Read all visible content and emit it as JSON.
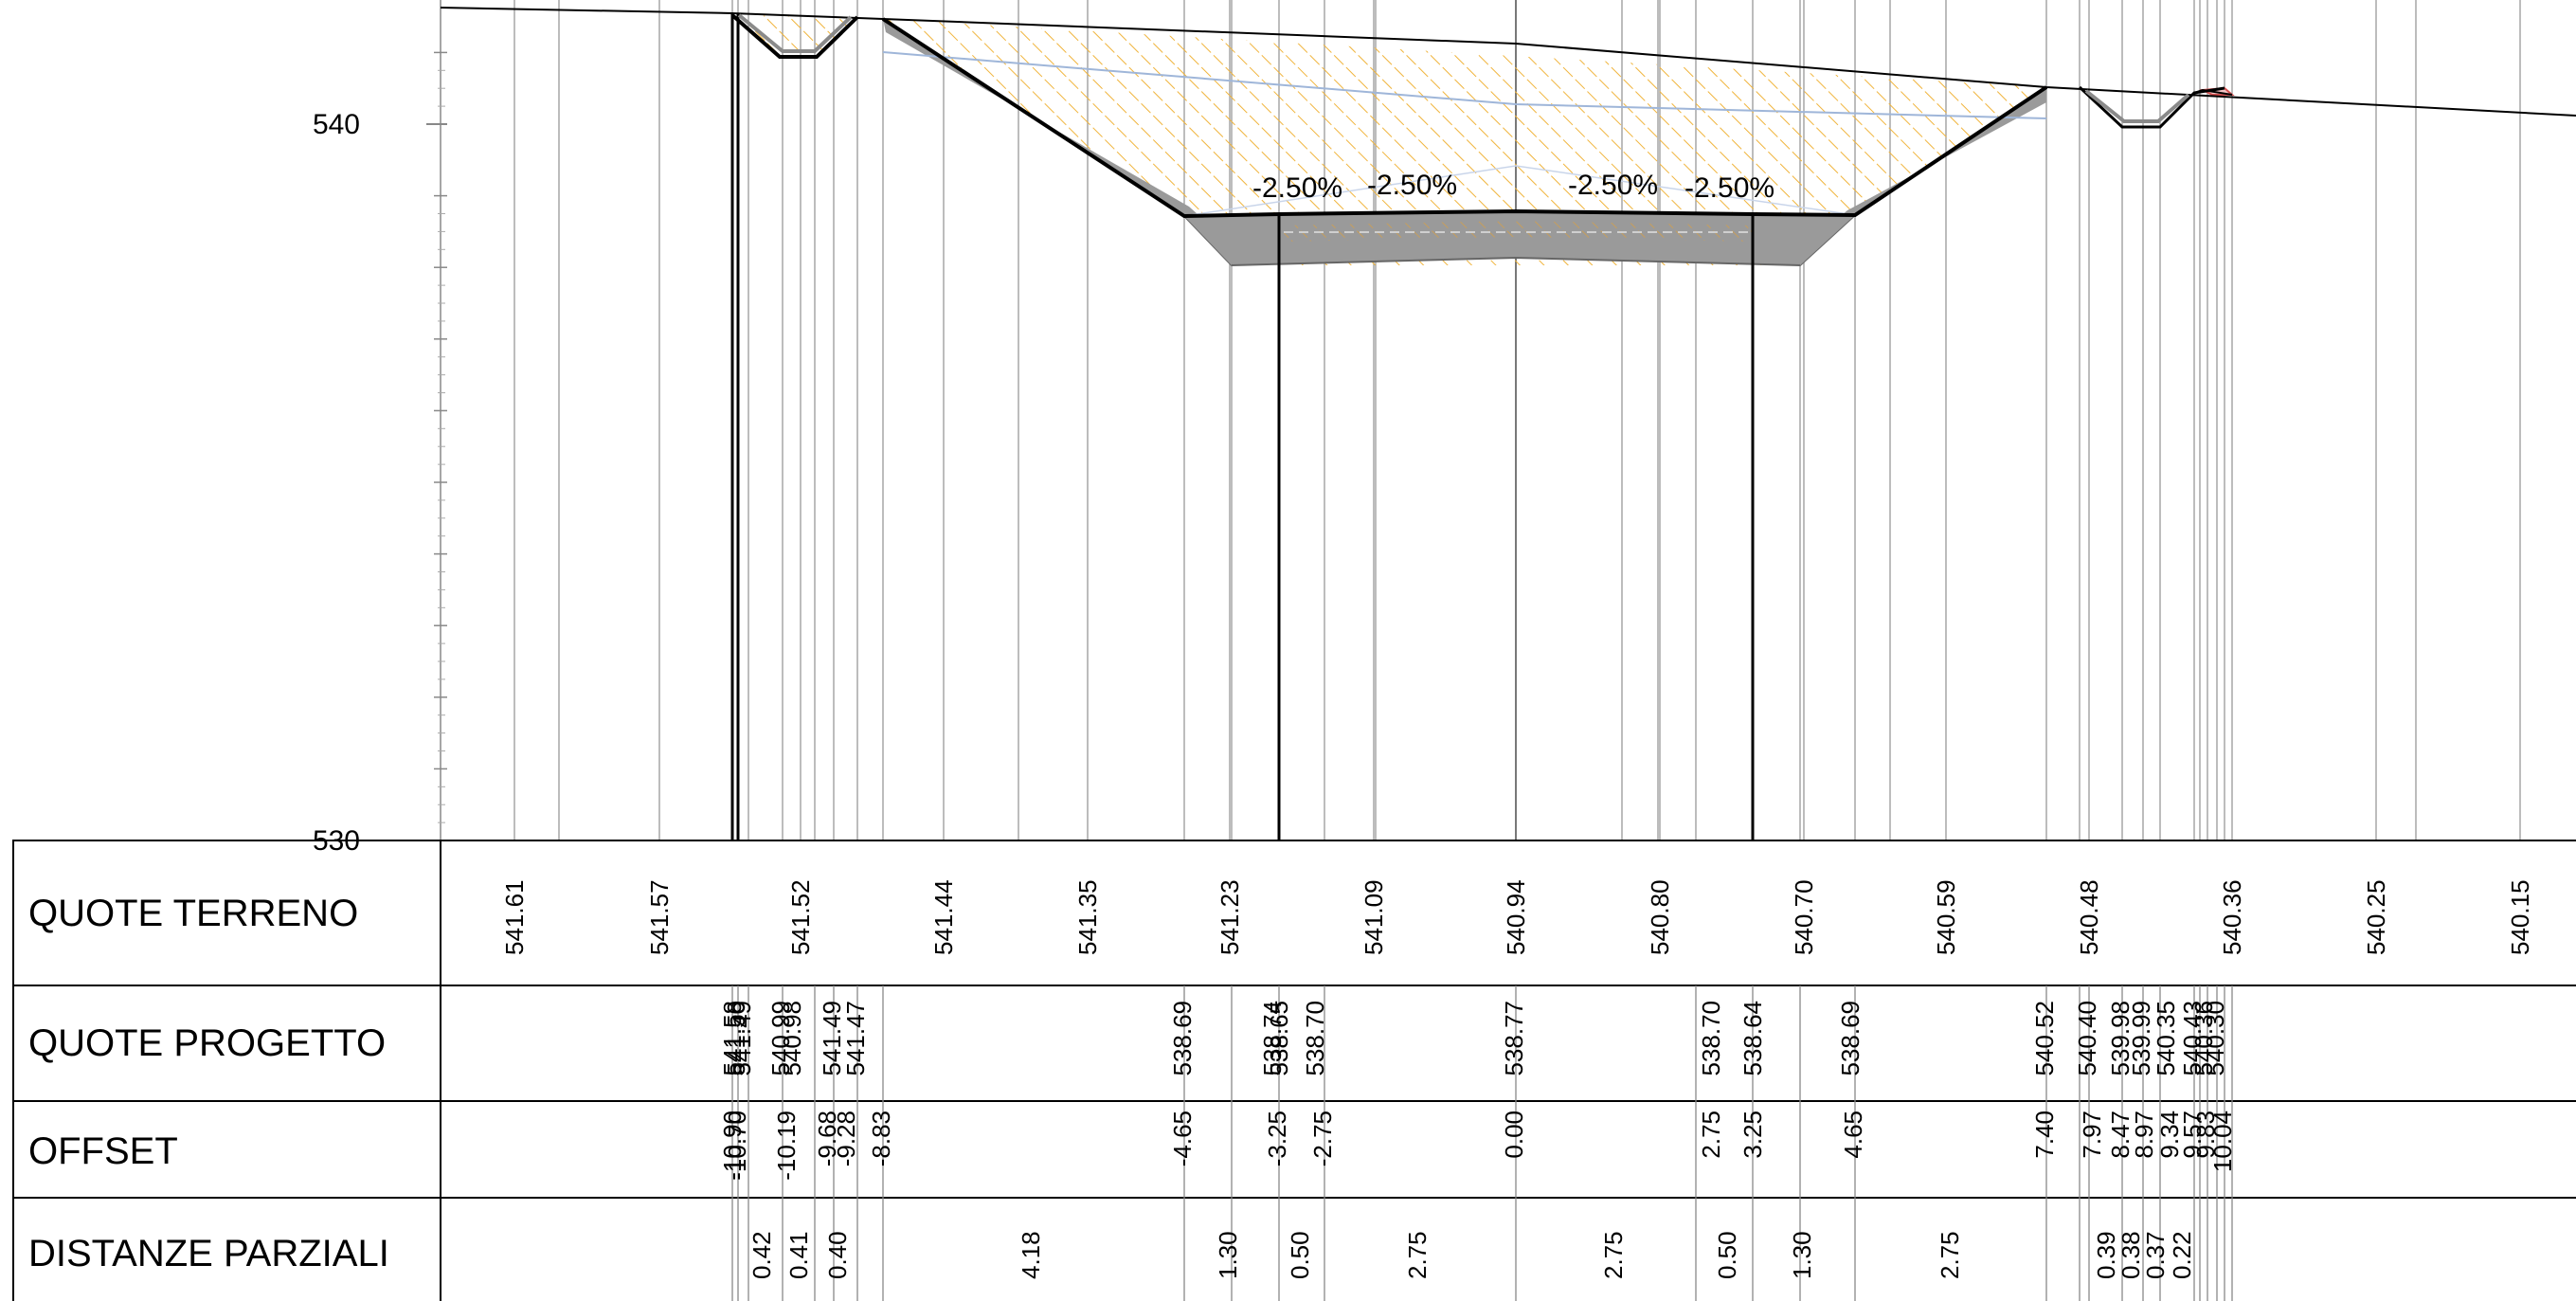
{
  "elevation_labels": [
    {
      "text": "540",
      "value": 540
    },
    {
      "text": "530",
      "value": 530
    }
  ],
  "rows": [
    {
      "key": "terreno",
      "label": "QUOTE TERRENO"
    },
    {
      "key": "progetto",
      "label": "QUOTE PROGETTO"
    },
    {
      "key": "offset",
      "label": "OFFSET"
    },
    {
      "key": "distanze",
      "label": "DISTANZE PARZIALI"
    }
  ],
  "slope_labels": [
    "-2.50%",
    "-2.50%",
    "-2.50%",
    "-2.50%"
  ],
  "terreno_values": [
    "541.61",
    "541.57",
    "541.52",
    "541.44",
    "541.35",
    "541.23",
    "541.09",
    "540.94",
    "540.80",
    "540.70",
    "540.59",
    "540.48",
    "540.36",
    "540.25",
    "540.15"
  ],
  "progetto_values": [
    "541.58",
    "541.50",
    "541.49",
    "540.99",
    "540.98",
    "541.49",
    "541.47",
    "538.69",
    "538.74",
    "538.65",
    "538.70",
    "538.77",
    "538.70",
    "538.64",
    "538.69",
    "540.52",
    "540.40",
    "539.98",
    "539.99",
    "540.35",
    "540.43",
    "540.36",
    "540.30"
  ],
  "offset_values": [
    "-10.90",
    "-10.70",
    "-10.19",
    "-9.68",
    "-9.28",
    "-8.83",
    "-4.65",
    "-3.25",
    "-2.75",
    "0.00",
    "2.75",
    "3.25",
    "4.65",
    "7.40",
    "7.97",
    "8.47",
    "8.97",
    "9.34",
    "9.57",
    "9.83",
    "10.04"
  ],
  "distanze_values": [
    "0.42",
    "0.41",
    "0.40",
    "4.18",
    "1.30",
    "0.50",
    "2.75",
    "2.75",
    "0.50",
    "1.30",
    "2.75",
    "0.39",
    "0.38",
    "0.37",
    "0.22"
  ],
  "colors": {
    "cut_hatch": "#f0b43c",
    "pavement": "#9a9a9a",
    "design_line": "#000000",
    "ground_line": "#000000",
    "ref_line": "#9fb6d9",
    "grid": "#999999"
  }
}
